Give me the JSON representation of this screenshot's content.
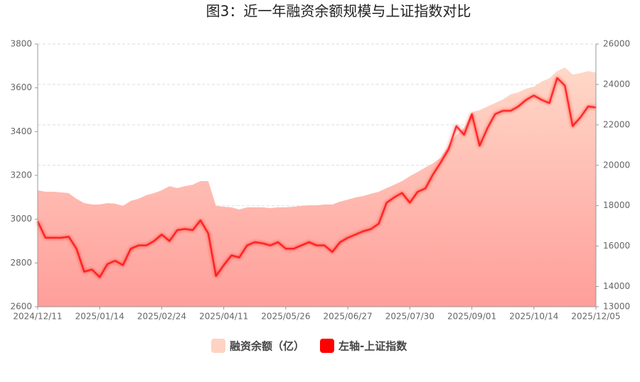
{
  "chart_data": {
    "type": "area-line",
    "title": "图3：近一年融资余额规模与上证指数对比",
    "categories": [
      "2024/12/11",
      null,
      null,
      null,
      null,
      null,
      null,
      null,
      "2025/01/14",
      null,
      null,
      null,
      null,
      null,
      null,
      null,
      "2025/02/24",
      null,
      null,
      null,
      null,
      null,
      null,
      null,
      "2025/04/11",
      null,
      null,
      null,
      null,
      null,
      null,
      null,
      "2025/05/26",
      null,
      null,
      null,
      null,
      null,
      null,
      null,
      "2025/06/27",
      null,
      null,
      null,
      null,
      null,
      null,
      null,
      "2025/07/30",
      null,
      null,
      null,
      null,
      null,
      null,
      null,
      "2025/09/01",
      null,
      null,
      null,
      null,
      null,
      null,
      null,
      "2025/10/14",
      null,
      null,
      null,
      null,
      null,
      null,
      null,
      "2025/12/05"
    ],
    "series": [
      {
        "name": "融资余额（亿）",
        "type": "area",
        "axis": "y2",
        "color": "#ffd2c2",
        "values": [
          18760,
          18690,
          18690,
          18660,
          18620,
          18340,
          18130,
          18060,
          18060,
          18130,
          18100,
          17990,
          18240,
          18340,
          18520,
          18620,
          18760,
          18970,
          18870,
          18970,
          19040,
          19220,
          19220,
          17990,
          17950,
          17920,
          17810,
          17920,
          17920,
          17920,
          17880,
          17920,
          17920,
          17950,
          17990,
          18020,
          18020,
          18060,
          18060,
          18200,
          18300,
          18410,
          18480,
          18590,
          18690,
          18870,
          19040,
          19220,
          19460,
          19670,
          19890,
          20100,
          20380,
          20980,
          21500,
          21850,
          22630,
          22730,
          22910,
          23080,
          23260,
          23510,
          23610,
          23790,
          23890,
          24140,
          24310,
          24660,
          24840,
          24490,
          24560,
          24660,
          24590
        ]
      },
      {
        "name": "左轴-上证指数",
        "type": "line",
        "axis": "y",
        "color": "#ff0000",
        "values": [
          2990,
          2915,
          2915,
          2915,
          2920,
          2865,
          2760,
          2770,
          2735,
          2795,
          2810,
          2790,
          2865,
          2880,
          2880,
          2900,
          2930,
          2900,
          2950,
          2955,
          2950,
          2995,
          2935,
          2740,
          2790,
          2835,
          2825,
          2880,
          2895,
          2890,
          2880,
          2895,
          2865,
          2865,
          2880,
          2895,
          2880,
          2880,
          2850,
          2895,
          2915,
          2930,
          2945,
          2955,
          2980,
          3075,
          3100,
          3120,
          3075,
          3125,
          3140,
          3205,
          3260,
          3320,
          3425,
          3385,
          3480,
          3335,
          3415,
          3480,
          3495,
          3495,
          3515,
          3545,
          3565,
          3545,
          3530,
          3645,
          3610,
          3425,
          3465,
          3515,
          3510
        ]
      }
    ],
    "ylim": [
      2600,
      3800
    ],
    "yticks": [
      2600,
      2800,
      3000,
      3200,
      3400,
      3600,
      3800
    ],
    "y2lim": [
      13000,
      26000
    ],
    "y2ticks": [
      13000,
      14000,
      16000,
      18000,
      20000,
      22000,
      24000,
      26000
    ],
    "grid": true,
    "legend": "bottom"
  }
}
